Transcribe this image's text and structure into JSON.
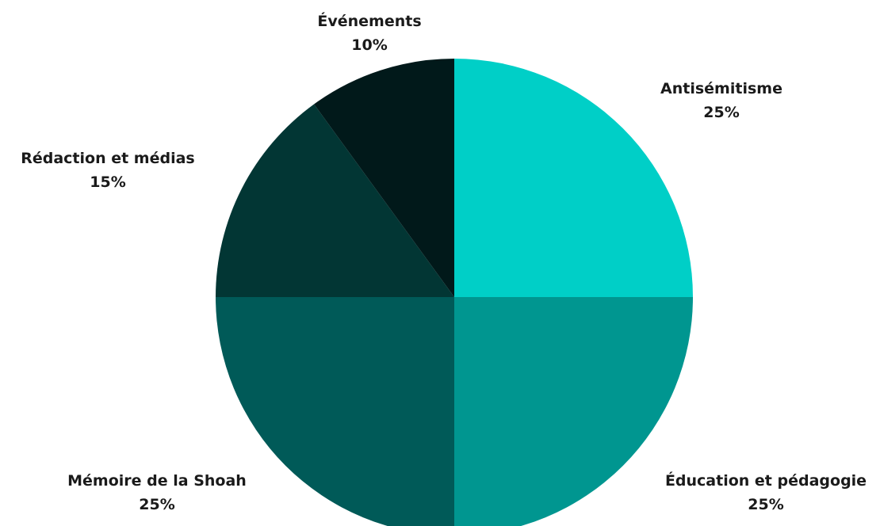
{
  "chart_data": {
    "type": "pie",
    "title": "",
    "start": "12 o'clock",
    "direction": "clockwise",
    "slices": [
      {
        "label": "Antisémitisme",
        "value": 25,
        "value_label": "25%",
        "color": "#00CFC7"
      },
      {
        "label": "Éducation et pédagogie",
        "value": 25,
        "value_label": "25%",
        "color": "#009690"
      },
      {
        "label": "Mémoire de la Shoah",
        "value": 25,
        "value_label": "25%",
        "color": "#005A58"
      },
      {
        "label": "Rédaction et médias",
        "value": 15,
        "value_label": "15%",
        "color": "#023634"
      },
      {
        "label": "Événements",
        "value": 10,
        "value_label": "10%",
        "color": "#01191A"
      }
    ]
  }
}
